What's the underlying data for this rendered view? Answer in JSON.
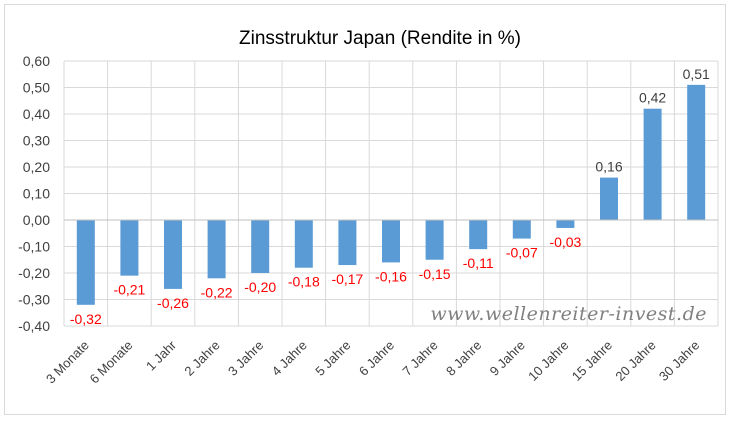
{
  "chart_data": {
    "type": "bar",
    "title": "Zinsstruktur Japan (Rendite in %)",
    "categories": [
      "3 Monate",
      "6 Monate",
      "1 Jahr",
      "2 Jahre",
      "3 Jahre",
      "4 Jahre",
      "5 Jahre",
      "6 Jahre",
      "7 Jahre",
      "8 Jahre",
      "9 Jahre",
      "10 Jahre",
      "15 Jahre",
      "20 Jahre",
      "30 Jahre"
    ],
    "values": [
      -0.32,
      -0.21,
      -0.26,
      -0.22,
      -0.2,
      -0.18,
      -0.17,
      -0.16,
      -0.15,
      -0.11,
      -0.07,
      -0.03,
      0.16,
      0.42,
      0.51
    ],
    "data_labels": [
      "-0,32",
      "-0,21",
      "-0,26",
      "-0,22",
      "-0,20",
      "-0,18",
      "-0,17",
      "-0,16",
      "-0,15",
      "-0,11",
      "-0,07",
      "-0,03",
      "0,16",
      "0,42",
      "0,51"
    ],
    "ylim": [
      -0.4,
      0.6
    ],
    "yticks": [
      0.6,
      0.5,
      0.4,
      0.3,
      0.2,
      0.1,
      0.0,
      -0.1,
      -0.2,
      -0.3,
      -0.4
    ],
    "ytick_labels": [
      "0,60",
      "0,50",
      "0,40",
      "0,30",
      "0,20",
      "0,10",
      "0,00",
      "-0,10",
      "-0,20",
      "-0,30",
      "-0,40"
    ],
    "xlabel": "",
    "ylabel": "",
    "grid": true,
    "legend": "none",
    "colors": {
      "bar": "#5b9bd5",
      "negative_label": "#ff0000",
      "positive_label": "#404040",
      "grid": "#d9d9d9"
    }
  },
  "watermark": "www.wellenreiter-invest.de"
}
